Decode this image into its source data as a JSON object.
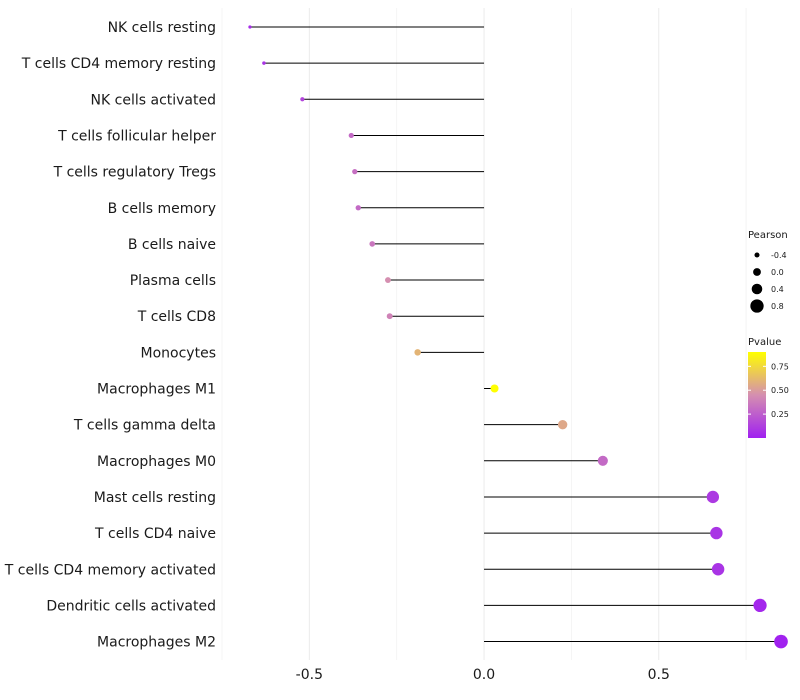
{
  "chart_data": {
    "type": "lollipop",
    "title": "",
    "xlabel": "",
    "ylabel": "",
    "xlim": [
      -0.75,
      0.87
    ],
    "xticks": [
      -0.5,
      0.0,
      0.5
    ],
    "xtick_labels": [
      "-0.5",
      "0.0",
      "0.5"
    ],
    "categories": [
      "NK cells resting",
      "T cells CD4 memory resting",
      "NK cells activated",
      "T cells follicular helper",
      "T cells regulatory  Tregs ",
      "B cells memory",
      "B cells naive",
      "Plasma cells",
      "T cells CD8",
      "Monocytes",
      "Macrophages M1",
      "T cells gamma delta",
      "Macrophages M0",
      "Mast cells resting",
      "T cells CD4 naive",
      "T cells CD4 memory activated",
      "Dendritic cells activated",
      "Macrophages M2"
    ],
    "pearson": [
      -0.67,
      -0.63,
      -0.52,
      -0.38,
      -0.37,
      -0.36,
      -0.32,
      -0.275,
      -0.27,
      -0.19,
      0.03,
      0.225,
      0.34,
      0.655,
      0.665,
      0.67,
      0.79,
      0.85
    ],
    "pvalue": [
      0.05,
      0.08,
      0.15,
      0.3,
      0.32,
      0.3,
      0.35,
      0.45,
      0.4,
      0.6,
      0.95,
      0.55,
      0.3,
      0.1,
      0.08,
      0.08,
      0.03,
      0.01
    ],
    "legend_size": {
      "title": "Pearson",
      "labels": [
        "-0.4",
        "0.0",
        "0.4",
        "0.8"
      ],
      "values": [
        -0.4,
        0.0,
        0.4,
        0.8
      ]
    },
    "legend_color": {
      "title": "Pvalue",
      "labels": [
        "0.75",
        "0.50",
        "0.25"
      ],
      "values": [
        0.75,
        0.5,
        0.25
      ],
      "range": [
        0.0,
        0.9
      ],
      "low_color": "#a020f0",
      "mid_color": "#d58fb0",
      "high_color": "#ffff00"
    },
    "grid": true,
    "legend_position": "right"
  }
}
